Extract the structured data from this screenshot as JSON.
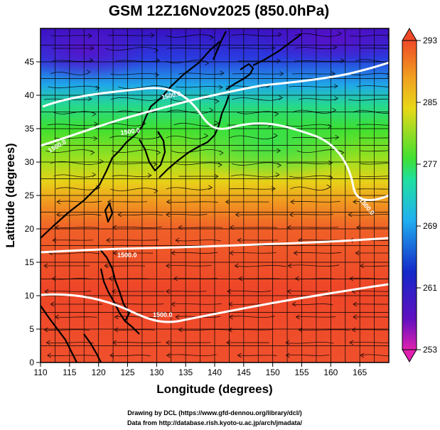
{
  "title": "GSM 12Z16Nov2025 (850.0hPa)",
  "xlabel": "Longitude (degrees)",
  "ylabel": "Latitude  (degrees)",
  "x_axis": {
    "min": 110,
    "max": 170,
    "ticks": [
      "110",
      "115",
      "120",
      "125",
      "130",
      "135",
      "140",
      "145",
      "150",
      "155",
      "160",
      "165"
    ]
  },
  "y_axis": {
    "min": 0,
    "max": 50,
    "ticks": [
      "0",
      "5",
      "10",
      "15",
      "20",
      "25",
      "30",
      "35",
      "40",
      "45"
    ]
  },
  "colorbar": {
    "min": 253,
    "max": 293,
    "ticks": [
      "253",
      "261",
      "269",
      "277",
      "285",
      "293"
    ]
  },
  "contour_labels": [
    "1500.0",
    "1500.0",
    "1500.0",
    "1500.0",
    "1500.0",
    "1500.0"
  ],
  "credits": {
    "line1": "Drawing by DCL (https://www.gfd-dennou.org/library/dcl/)",
    "line2": "Data from http://database.rish.kyoto-u.ac.jp/arch/jmadata/"
  },
  "colors": {
    "contour": "#ffffff",
    "coastline": "#000000",
    "grid": "#000000"
  }
}
